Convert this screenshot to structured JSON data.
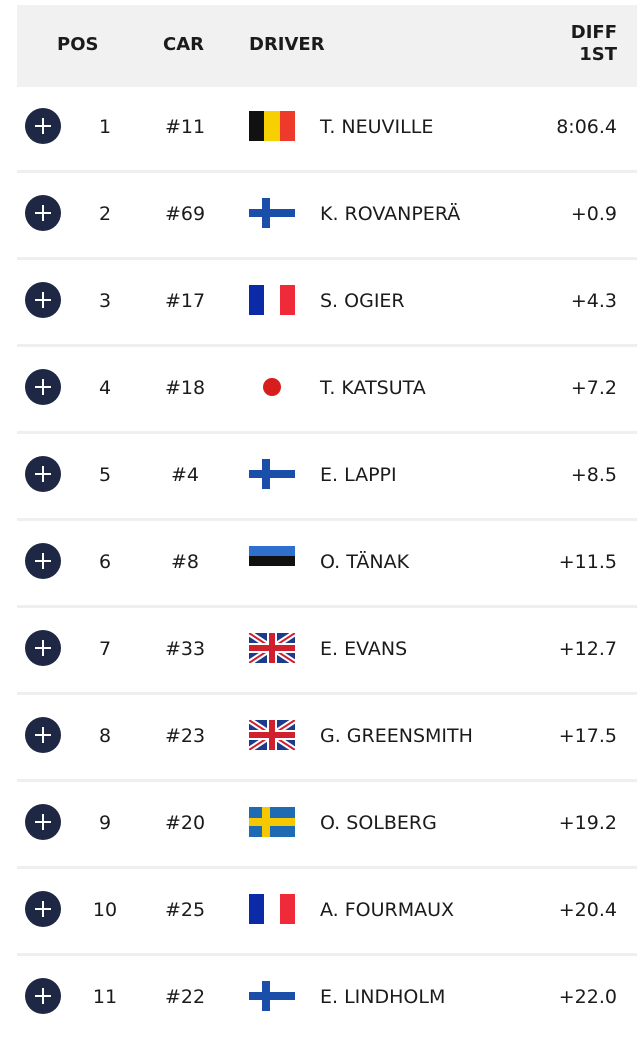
{
  "header": {
    "columns": [
      "POS",
      "CAR",
      "DRIVER",
      "DIFF 1ST"
    ]
  },
  "table": {
    "rows": [
      [
        1,
        "#11",
        "T. NEUVILLE",
        "8:06.4"
      ],
      [
        2,
        "#69",
        "K. ROVANPERÄ",
        "+0.9"
      ],
      [
        3,
        "#17",
        "S. OGIER",
        "+4.3"
      ],
      [
        4,
        "#18",
        "T. KATSUTA",
        "+7.2"
      ],
      [
        5,
        "#4",
        "E. LAPPI",
        "+8.5"
      ],
      [
        6,
        "#8",
        "O. TÄNAK",
        "+11.5"
      ],
      [
        7,
        "#33",
        "E. EVANS",
        "+12.7"
      ],
      [
        8,
        "#23",
        "G. GREENSMITH",
        "+17.5"
      ],
      [
        9,
        "#20",
        "O. SOLBERG",
        "+19.2"
      ],
      [
        10,
        "#25",
        "A. FOURMAUX",
        "+20.4"
      ],
      [
        11,
        "#22",
        "E. LINDHOLM",
        "+22.0"
      ]
    ]
  }
}
